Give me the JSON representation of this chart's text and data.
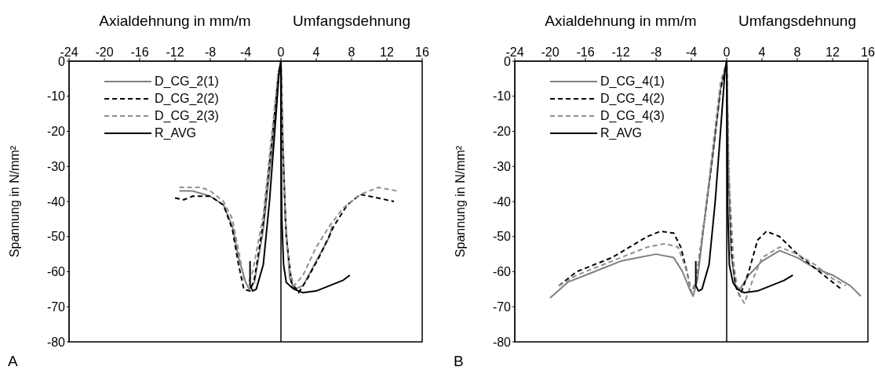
{
  "chart_data": [
    {
      "type": "line",
      "xlabel": "Axialdehnung in mm/m",
      "ylabel": "Spannung in N/mm²",
      "annotations": [
        "Umfangsdehnung",
        "A"
      ],
      "xlim": [
        -24,
        16
      ],
      "xticks": [
        -24,
        -20,
        -16,
        -12,
        -8,
        -4,
        0,
        4,
        8,
        12,
        16
      ],
      "ylim": [
        -80,
        0
      ],
      "yticks": [
        -80,
        -70,
        -60,
        -50,
        -40,
        -30,
        -20,
        -10,
        0
      ],
      "legend": "top left",
      "grid": false,
      "marker": "none",
      "ref_lines": [
        {
          "axis": "x",
          "value": 0,
          "color": "#000000"
        }
      ],
      "series": [
        {
          "name": "D_CG_2(1)",
          "color": "#808080",
          "line_style": "solid",
          "x": [
            -11.5,
            -10,
            -8,
            -6.5,
            -5.5,
            -4.8,
            -4,
            -3.6,
            -3,
            -2,
            -1,
            -0.3,
            0,
            0.2,
            0.5,
            1,
            1.5,
            2.5,
            4,
            5.5,
            5.8
          ],
          "values": [
            -37,
            -37,
            -38.5,
            -41,
            -47,
            -56,
            -63,
            -65,
            -63,
            -48,
            -25,
            -5,
            0,
            -20,
            -45,
            -62,
            -65,
            -64,
            -57,
            -50,
            -47
          ]
        },
        {
          "name": "D_CG_2(2)",
          "color": "#000000",
          "line_style": "dashed",
          "x": [
            -12,
            -11,
            -10,
            -8,
            -6.5,
            -5.5,
            -4.8,
            -4.2,
            -3.5,
            -3,
            -2,
            -1,
            -0.3,
            0,
            0.2,
            0.6,
            1.2,
            2,
            3,
            4.5,
            6,
            7.5,
            9,
            11,
            12.8
          ],
          "values": [
            -39,
            -39.5,
            -38.5,
            -38.5,
            -41,
            -48,
            -58,
            -65,
            -65.5,
            -62,
            -46,
            -22,
            -4,
            0,
            -25,
            -50,
            -63,
            -66,
            -62,
            -55,
            -47,
            -41,
            -38,
            -39,
            -40
          ]
        },
        {
          "name": "D_CG_2(3)",
          "color": "#909090",
          "line_style": "dashed",
          "x": [
            -11.5,
            -9,
            -8,
            -6.5,
            -5.5,
            -4.8,
            -4.2,
            -3.8,
            -3.2,
            -2,
            -1,
            -0.3,
            0,
            0.2,
            0.6,
            1,
            1.5,
            2.5,
            4,
            5.5,
            7,
            9,
            11,
            13.2
          ],
          "values": [
            -36,
            -36,
            -37,
            -40,
            -45,
            -54,
            -62,
            -64,
            -60,
            -44,
            -20,
            -3,
            0,
            -25,
            -50,
            -60,
            -64,
            -61,
            -53,
            -47,
            -42,
            -38,
            -36,
            -37
          ]
        },
        {
          "name": "R_AVG",
          "color": "#000000",
          "line_style": "solid",
          "x": [
            -3.5,
            -3.5,
            -3.2,
            -2.8,
            -2,
            -1.3,
            -0.7,
            -0.2,
            0,
            0,
            0.1,
            0.3,
            0.6,
            1,
            1.5,
            2.5,
            4,
            5.5,
            7,
            7.8
          ],
          "values": [
            -57,
            -64,
            -65.5,
            -65,
            -58,
            -40,
            -20,
            -3,
            0,
            -20,
            -45,
            -58,
            -63,
            -64,
            -65,
            -66,
            -65.5,
            -64,
            -62.5,
            -61
          ]
        }
      ]
    },
    {
      "type": "line",
      "xlabel": "Axialdehnung in mm/m",
      "ylabel": "Spannung in N/mm²",
      "annotations": [
        "Umfangsdehnung",
        "B"
      ],
      "xlim": [
        -24,
        16
      ],
      "xticks": [
        -24,
        -20,
        -16,
        -12,
        -8,
        -4,
        0,
        4,
        8,
        12,
        16
      ],
      "ylim": [
        -80,
        0
      ],
      "yticks": [
        -80,
        -70,
        -60,
        -50,
        -40,
        -30,
        -20,
        -10,
        0
      ],
      "legend": "top left",
      "grid": false,
      "marker": "none",
      "ref_lines": [
        {
          "axis": "x",
          "value": 0,
          "color": "#000000"
        }
      ],
      "series": [
        {
          "name": "D_CG_4(1)",
          "color": "#808080",
          "line_style": "solid",
          "x": [
            -20,
            -18,
            -16,
            -14,
            -12,
            -10,
            -8,
            -6,
            -5,
            -4.2,
            -3.8,
            -3.3,
            -2.5,
            -1.5,
            -0.7,
            0,
            0.2,
            0.5,
            1,
            1.5,
            2.5,
            4,
            6,
            8,
            10,
            12,
            14,
            15.2
          ],
          "values": [
            -67.5,
            -63,
            -61,
            -59,
            -57,
            -56,
            -55,
            -56,
            -60,
            -65,
            -67,
            -62,
            -45,
            -25,
            -8,
            0,
            -30,
            -55,
            -64,
            -65,
            -61,
            -57,
            -54,
            -56,
            -59,
            -61,
            -64,
            -67
          ]
        },
        {
          "name": "D_CG_4(2)",
          "color": "#000000",
          "line_style": "dashed",
          "x": [
            -19,
            -17,
            -15,
            -13,
            -11,
            -9,
            -7.5,
            -6,
            -5.2,
            -4.5,
            -4,
            -3.5,
            -2.5,
            -1.5,
            -0.7,
            0,
            0.2,
            0.6,
            1,
            1.5,
            2.5,
            3.5,
            4.5,
            6,
            8,
            10,
            12,
            13
          ],
          "values": [
            -64,
            -60,
            -58,
            -56,
            -53,
            -50,
            -48.5,
            -49,
            -53,
            -60,
            -66,
            -63,
            -45,
            -25,
            -8,
            0,
            -30,
            -55,
            -64,
            -67,
            -60,
            -51,
            -48.5,
            -50,
            -55,
            -59,
            -63,
            -65
          ]
        },
        {
          "name": "D_CG_4(3)",
          "color": "#909090",
          "line_style": "dashed",
          "x": [
            -19,
            -17,
            -15,
            -13,
            -11,
            -9,
            -7,
            -5.5,
            -4.5,
            -4,
            -3.5,
            -2.5,
            -1.5,
            -0.7,
            0,
            0.3,
            0.8,
            1.3,
            2,
            3,
            4,
            6,
            8,
            10,
            12,
            13.5
          ],
          "values": [
            -64,
            -61,
            -59,
            -57,
            -55,
            -53,
            -52,
            -53,
            -60,
            -66,
            -63,
            -45,
            -23,
            -6,
            0,
            -35,
            -58,
            -66,
            -69,
            -62,
            -56,
            -53,
            -55,
            -58,
            -62,
            -64
          ]
        },
        {
          "name": "R_AVG",
          "color": "#000000",
          "line_style": "solid",
          "x": [
            -3.5,
            -3.5,
            -3.2,
            -2.8,
            -2,
            -1.3,
            -0.7,
            -0.2,
            0,
            0.1,
            0.3,
            0.7,
            1.2,
            2,
            3.5,
            5,
            6.5,
            7.5
          ],
          "values": [
            -57,
            -64,
            -65.5,
            -65,
            -58,
            -40,
            -20,
            -3,
            0,
            -40,
            -58,
            -63,
            -65,
            -66,
            -65.5,
            -64,
            -62.5,
            -61
          ]
        }
      ]
    }
  ]
}
